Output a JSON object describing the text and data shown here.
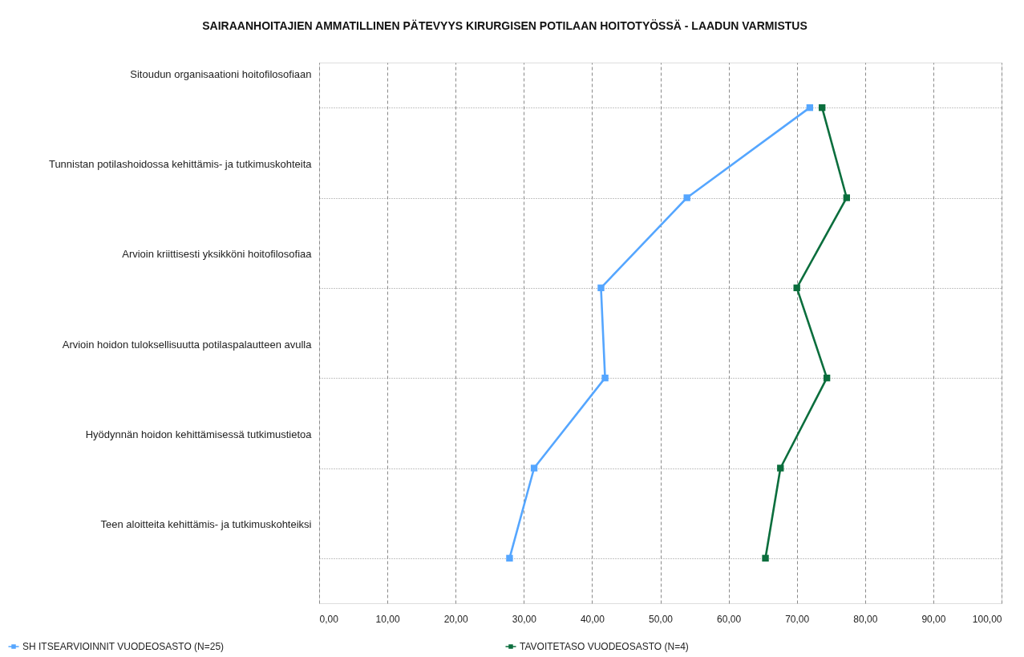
{
  "chart_data": {
    "type": "line",
    "title": "SAIRAANHOITAJIEN AMMATILLINEN PÄTEVYYS KIRURGISEN POTILAAN HOITOTYÖSSÄ - LAADUN VARMISTUS",
    "categories": [
      "Sitoudun organisaationi hoitofilosofiaan",
      "Tunnistan potilashoidossa kehittämis- ja tutkimuskohteita",
      "Arvioin kriittisesti yksikköni hoitofilosofiaa",
      "Arvioin hoidon tuloksellisuutta potilaspalautteen avulla",
      "Hyödynnän hoidon kehittämisessä tutkimustietoa",
      "Teen aloitteita kehittämis- ja tutkimuskohteiksi"
    ],
    "orientation": "horizontal",
    "series": [
      {
        "name": "SH ITSEARVIOINNIT VUODEOSASTO (N=25)",
        "color": "#55a6ff",
        "values": [
          71.9,
          53.9,
          41.3,
          41.9,
          31.5,
          27.9
        ]
      },
      {
        "name": "TAVOITETASO VUODEOSASTO (N=4)",
        "color": "#0b6e3d",
        "values": [
          73.7,
          77.3,
          70.0,
          74.4,
          67.6,
          65.4
        ]
      }
    ],
    "xlim": [
      0,
      100
    ],
    "xticks": [
      {
        "value": 0,
        "label": "0,00"
      },
      {
        "value": 10,
        "label": "10,00"
      },
      {
        "value": 20,
        "label": "20,00"
      },
      {
        "value": 30,
        "label": "30,00"
      },
      {
        "value": 40,
        "label": "40,00"
      },
      {
        "value": 50,
        "label": "50,00"
      },
      {
        "value": 60,
        "label": "60,00"
      },
      {
        "value": 70,
        "label": "70,00"
      },
      {
        "value": 80,
        "label": "80,00"
      },
      {
        "value": 90,
        "label": "90,00"
      },
      {
        "value": 100,
        "label": "100,00"
      }
    ],
    "grid": true,
    "legend": "bottom",
    "marker": "square",
    "line_style": "solid"
  }
}
